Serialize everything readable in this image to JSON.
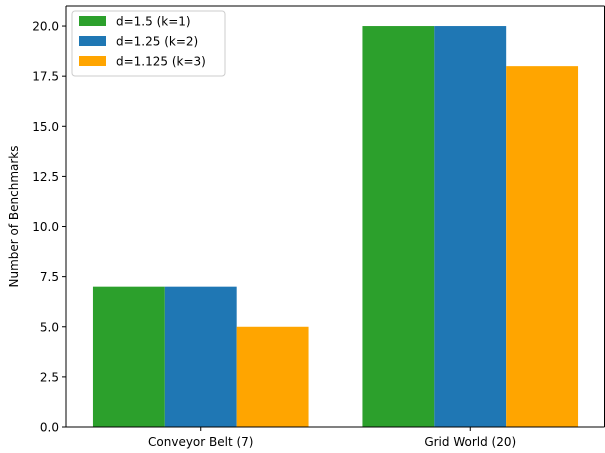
{
  "chart_data": {
    "type": "bar",
    "categories": [
      "Conveyor Belt (7)",
      "Grid World (20)"
    ],
    "series": [
      {
        "name": "d=1.5 (k=1)",
        "values": [
          7,
          20
        ],
        "color": "#2ca02c"
      },
      {
        "name": "d=1.25 (k=2)",
        "values": [
          7,
          20
        ],
        "color": "#1f77b4"
      },
      {
        "name": "d=1.125 (k=3)",
        "values": [
          5,
          18
        ],
        "color": "#ffa500"
      }
    ],
    "title": "",
    "xlabel": "",
    "ylabel": "Number of Benchmarks",
    "ylim": [
      0,
      21
    ],
    "yticks": [
      "0.0",
      "2.5",
      "5.0",
      "7.5",
      "10.0",
      "12.5",
      "15.0",
      "17.5",
      "20.0"
    ],
    "grid": false,
    "legend_position": "top-left"
  }
}
